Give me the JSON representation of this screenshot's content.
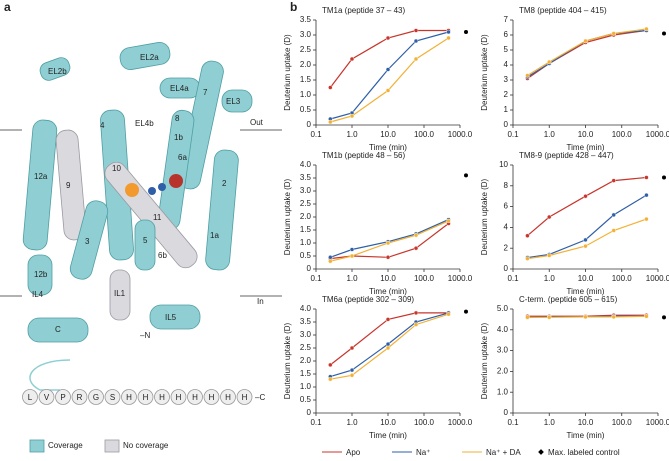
{
  "panel_labels": [
    "a",
    "b"
  ],
  "structure": {
    "labels": [
      "EL2b",
      "EL2a",
      "EL4a",
      "7",
      "EL3",
      "4",
      "8",
      "EL4b",
      "1b",
      "6a",
      "12a",
      "9",
      "10",
      "2",
      "11",
      "1a",
      "3",
      "5",
      "6b",
      "12b",
      "IL4",
      "IL1",
      "IL5",
      "C",
      "–N"
    ],
    "membrane": [
      "Out",
      "In"
    ],
    "sequence": [
      "L",
      "V",
      "P",
      "R",
      "G",
      "S",
      "H",
      "H",
      "H",
      "H",
      "H",
      "H",
      "H",
      "H"
    ],
    "c_terminus": "–C",
    "coverage_legend": [
      "Coverage",
      "No coverage"
    ]
  },
  "legend_extra": "Max. labeled control",
  "chart_data": [
    {
      "type": "line",
      "title": "TM1a (peptide 37 – 43)",
      "xlabel": "Time (min)",
      "ylabel": "Deuterium uptake (D)",
      "xlog": true,
      "x": [
        0.25,
        1,
        10,
        60,
        480
      ],
      "xlim": [
        0.1,
        1000
      ],
      "xticks": [
        0.1,
        {
          "value": 1,
          "label": "1.0"
        },
        {
          "value": 10,
          "label": "10.0"
        },
        {
          "value": 100,
          "label": "100.0"
        },
        {
          "value": 1000,
          "label": "1000.0"
        }
      ],
      "ylim": [
        0,
        3.5
      ],
      "yticks": [
        0,
        0.5,
        {
          "value": 1,
          "label": "1.0"
        },
        1.5,
        {
          "value": 2,
          "label": "2.0"
        },
        2.5,
        {
          "value": 3,
          "label": "3.0"
        },
        3.5
      ],
      "max_control": 3.1,
      "series": [
        {
          "name": "Apo",
          "color": "#c8352b",
          "values": [
            1.25,
            2.2,
            2.9,
            3.15,
            3.15
          ]
        },
        {
          "name": "Na⁺",
          "color": "#2f5fa8",
          "values": [
            0.2,
            0.4,
            1.85,
            2.8,
            3.1
          ]
        },
        {
          "name": "Na⁺ + DA",
          "color": "#f2b134",
          "values": [
            0.1,
            0.3,
            1.15,
            2.2,
            2.9
          ]
        }
      ]
    },
    {
      "type": "line",
      "title": "TM8 (peptide 404 – 415)",
      "xlabel": "Time (min)",
      "ylabel": "Deuterium uptake (D)",
      "xlog": true,
      "x": [
        0.25,
        1,
        10,
        60,
        480
      ],
      "xlim": [
        0.1,
        1000
      ],
      "xticks": [
        0.1,
        {
          "value": 1,
          "label": "1.0"
        },
        {
          "value": 10,
          "label": "10.0"
        },
        {
          "value": 100,
          "label": "100.0"
        },
        {
          "value": 1000,
          "label": "1000.0"
        }
      ],
      "ylim": [
        0,
        7
      ],
      "yticks": [
        0,
        1,
        2,
        3,
        4,
        5,
        6,
        7
      ],
      "max_control": 6.1,
      "series": [
        {
          "name": "Apo",
          "color": "#c8352b",
          "values": [
            3.1,
            4.1,
            5.5,
            6.0,
            6.3
          ]
        },
        {
          "name": "Na⁺",
          "color": "#2f5fa8",
          "values": [
            3.2,
            4.1,
            5.6,
            6.1,
            6.3
          ]
        },
        {
          "name": "Na⁺ + DA",
          "color": "#f2b134",
          "values": [
            3.3,
            4.2,
            5.6,
            6.1,
            6.4
          ]
        }
      ]
    },
    {
      "type": "line",
      "title": "TM1b (peptide 48 – 56)",
      "xlabel": "Time (min)",
      "ylabel": "Deuterium uptake (D)",
      "xlog": true,
      "x": [
        0.25,
        1,
        10,
        60,
        480
      ],
      "xlim": [
        0.1,
        1000
      ],
      "xticks": [
        0.1,
        {
          "value": 1,
          "label": "1.0"
        },
        {
          "value": 10,
          "label": "10.0"
        },
        {
          "value": 100,
          "label": "100.0"
        },
        {
          "value": 1000,
          "label": "1000.0"
        }
      ],
      "ylim": [
        0,
        4
      ],
      "yticks": [
        0,
        0.5,
        {
          "value": 1,
          "label": "1.0"
        },
        1.5,
        {
          "value": 2,
          "label": "2.0"
        },
        2.5,
        {
          "value": 3,
          "label": "3.0"
        },
        3.5,
        {
          "value": 4,
          "label": "4.0"
        }
      ],
      "max_control": 3.6,
      "series": [
        {
          "name": "Apo",
          "color": "#c8352b",
          "values": [
            0.4,
            0.5,
            0.45,
            0.8,
            1.75
          ]
        },
        {
          "name": "Na⁺",
          "color": "#2f5fa8",
          "values": [
            0.45,
            0.75,
            1.05,
            1.35,
            1.9
          ]
        },
        {
          "name": "Na⁺ + DA",
          "color": "#f2b134",
          "values": [
            0.3,
            0.5,
            1.0,
            1.3,
            1.85
          ]
        }
      ]
    },
    {
      "type": "line",
      "title": "TM8-9 (peptide 428 – 447)",
      "xlabel": "Time (min)",
      "ylabel": "Deuterium uptake (D)",
      "xlog": true,
      "x": [
        0.25,
        1,
        10,
        60,
        480
      ],
      "xlim": [
        0.1,
        1000
      ],
      "xticks": [
        0.1,
        {
          "value": 1,
          "label": "1.0"
        },
        {
          "value": 10,
          "label": "10.0"
        },
        {
          "value": 100,
          "label": "100.0"
        },
        {
          "value": 1000,
          "label": "1000.0"
        }
      ],
      "ylim": [
        0,
        10
      ],
      "yticks": [
        0,
        2,
        4,
        6,
        8,
        10
      ],
      "max_control": 8.8,
      "series": [
        {
          "name": "Apo",
          "color": "#c8352b",
          "values": [
            3.2,
            5.0,
            7.0,
            8.5,
            8.8
          ]
        },
        {
          "name": "Na⁺",
          "color": "#2f5fa8",
          "values": [
            1.1,
            1.4,
            2.8,
            5.2,
            7.1
          ]
        },
        {
          "name": "Na⁺ + DA",
          "color": "#f2b134",
          "values": [
            1.0,
            1.3,
            2.2,
            3.7,
            4.8
          ]
        }
      ]
    },
    {
      "type": "line",
      "title": "TM6a (peptide 302 – 309)",
      "xlabel": "Time (min)",
      "ylabel": "Deuterium uptake (D)",
      "xlog": true,
      "x": [
        0.25,
        1,
        10,
        60,
        480
      ],
      "xlim": [
        0.1,
        1000
      ],
      "xticks": [
        0.1,
        {
          "value": 1,
          "label": "1.0"
        },
        {
          "value": 10,
          "label": "10.0"
        },
        {
          "value": 100,
          "label": "100.0"
        },
        {
          "value": 1000,
          "label": "1000.0"
        }
      ],
      "ylim": [
        0,
        4
      ],
      "yticks": [
        0,
        0.5,
        {
          "value": 1,
          "label": "1.0"
        },
        1.5,
        {
          "value": 2,
          "label": "2.0"
        },
        2.5,
        {
          "value": 3,
          "label": "3.0"
        },
        3.5,
        {
          "value": 4,
          "label": "4.0"
        }
      ],
      "max_control": 3.9,
      "series": [
        {
          "name": "Apo",
          "color": "#c8352b",
          "values": [
            1.85,
            2.5,
            3.6,
            3.85,
            3.85
          ]
        },
        {
          "name": "Na⁺",
          "color": "#2f5fa8",
          "values": [
            1.4,
            1.65,
            2.65,
            3.5,
            3.85
          ]
        },
        {
          "name": "Na⁺ + DA",
          "color": "#f2b134",
          "values": [
            1.3,
            1.45,
            2.5,
            3.4,
            3.8
          ]
        }
      ]
    },
    {
      "type": "line",
      "title": "C-term. (peptide 605 – 615)",
      "xlabel": "Time (min)",
      "ylabel": "Deuterium uptake (D)",
      "xlog": true,
      "x": [
        0.25,
        1,
        10,
        60,
        480
      ],
      "xlim": [
        0.1,
        1000
      ],
      "xticks": [
        0.1,
        {
          "value": 1,
          "label": "1.0"
        },
        {
          "value": 10,
          "label": "10.0"
        },
        {
          "value": 100,
          "label": "100.0"
        },
        {
          "value": 1000,
          "label": "1000.0"
        }
      ],
      "ylim": [
        0,
        5
      ],
      "yticks": [
        0,
        {
          "value": 1,
          "label": "1.0"
        },
        {
          "value": 2,
          "label": "2.0"
        },
        {
          "value": 3,
          "label": "3.0"
        },
        {
          "value": 4,
          "label": "4.0"
        },
        {
          "value": 5,
          "label": "5.0"
        }
      ],
      "max_control": 4.6,
      "series": [
        {
          "name": "Apo",
          "color": "#c8352b",
          "values": [
            4.65,
            4.65,
            4.65,
            4.7,
            4.7
          ]
        },
        {
          "name": "Na⁺",
          "color": "#2f5fa8",
          "values": [
            4.6,
            4.62,
            4.62,
            4.65,
            4.65
          ]
        },
        {
          "name": "Na⁺ + DA",
          "color": "#f2b134",
          "values": [
            4.6,
            4.6,
            4.62,
            4.62,
            4.65
          ]
        }
      ]
    }
  ]
}
